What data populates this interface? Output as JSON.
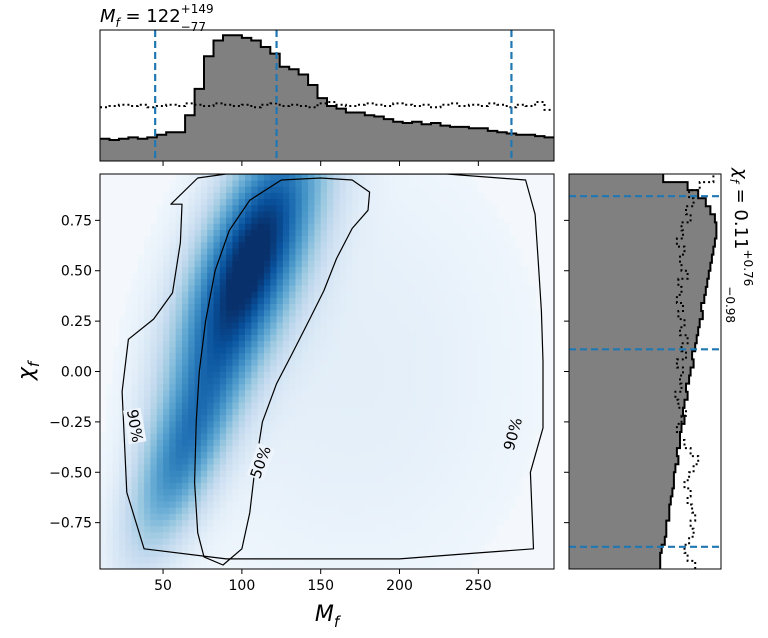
{
  "chart_data": [
    {
      "panel": "joint",
      "type": "heatmap",
      "xlabel": "M_f",
      "ylabel": "χ_f",
      "xlim": [
        10,
        298
      ],
      "ylim": [
        -0.98,
        0.98
      ],
      "xticks": [
        50,
        100,
        150,
        200,
        250
      ],
      "xtick_labels": [
        "50",
        "100",
        "150",
        "200",
        "250"
      ],
      "yticks": [
        -0.75,
        -0.5,
        -0.25,
        0.0,
        0.25,
        0.5,
        0.75
      ],
      "ytick_labels": [
        "−0.75",
        "−0.50",
        "−0.25",
        "0.00",
        "0.25",
        "0.50",
        "0.75"
      ],
      "colormap": "Blues",
      "density_peak": {
        "x": 108,
        "y": 0.62
      },
      "contours": [
        {
          "label": "50%",
          "label_positions": [
            {
              "x": 112,
              "y": -0.45
            }
          ],
          "points": [
            [
              76,
              -0.92
            ],
            [
              72,
              -0.8
            ],
            [
              70,
              -0.55
            ],
            [
              71,
              -0.25
            ],
            [
              73,
              0.0
            ],
            [
              77,
              0.25
            ],
            [
              83,
              0.5
            ],
            [
              92,
              0.7
            ],
            [
              105,
              0.85
            ],
            [
              125,
              0.95
            ],
            [
              150,
              0.96
            ],
            [
              170,
              0.95
            ],
            [
              181,
              0.89
            ],
            [
              180,
              0.8
            ],
            [
              170,
              0.71
            ],
            [
              160,
              0.56
            ],
            [
              152,
              0.4
            ],
            [
              143,
              0.26
            ],
            [
              132,
              0.09
            ],
            [
              122,
              -0.06
            ],
            [
              113,
              -0.25
            ],
            [
              108,
              -0.5
            ],
            [
              105,
              -0.7
            ],
            [
              100,
              -0.88
            ],
            [
              88,
              -0.96
            ],
            [
              76,
              -0.92
            ]
          ]
        },
        {
          "label": "90%",
          "label_positions": [
            {
              "x": 32,
              "y": -0.27
            },
            {
              "x": 272,
              "y": -0.31
            }
          ],
          "points": [
            [
              55,
              0.83
            ],
            [
              62,
              0.83
            ],
            [
              61,
              0.64
            ],
            [
              56,
              0.39
            ],
            [
              44,
              0.26
            ],
            [
              28,
              0.16
            ],
            [
              24,
              -0.1
            ],
            [
              27,
              -0.6
            ],
            [
              38,
              -0.88
            ],
            [
              90,
              -0.93
            ],
            [
              150,
              -0.93
            ],
            [
              200,
              -0.93
            ],
            [
              250,
              -0.9
            ],
            [
              285,
              -0.88
            ],
            [
              283,
              -0.5
            ],
            [
              291,
              -0.28
            ],
            [
              291,
              0.05
            ],
            [
              290,
              0.3
            ],
            [
              288,
              0.55
            ],
            [
              286,
              0.78
            ],
            [
              280,
              0.95
            ],
            [
              230,
              0.98
            ],
            [
              180,
              0.98
            ],
            [
              130,
              0.98
            ],
            [
              90,
              0.98
            ],
            [
              72,
              0.96
            ],
            [
              55,
              0.83
            ]
          ]
        }
      ]
    },
    {
      "panel": "marginal-x",
      "type": "histogram",
      "title_parts": {
        "symbol": "M",
        "sub": "f",
        "eq": " = 122",
        "sup": "+149",
        "low": "−77"
      },
      "xlim": [
        10,
        298
      ],
      "quantile_lines": [
        45,
        122,
        271
      ],
      "bin_width": 6,
      "posterior": [
        [
          10,
          0.17
        ],
        [
          16,
          0.16
        ],
        [
          22,
          0.17
        ],
        [
          28,
          0.18
        ],
        [
          34,
          0.17
        ],
        [
          40,
          0.18
        ],
        [
          46,
          0.2
        ],
        [
          52,
          0.22
        ],
        [
          58,
          0.22
        ],
        [
          64,
          0.35
        ],
        [
          70,
          0.55
        ],
        [
          76,
          0.8
        ],
        [
          82,
          0.92
        ],
        [
          88,
          0.96
        ],
        [
          94,
          0.96
        ],
        [
          100,
          0.94
        ],
        [
          106,
          0.92
        ],
        [
          112,
          0.87
        ],
        [
          118,
          0.82
        ],
        [
          124,
          0.72
        ],
        [
          130,
          0.7
        ],
        [
          136,
          0.66
        ],
        [
          142,
          0.58
        ],
        [
          148,
          0.48
        ],
        [
          154,
          0.42
        ],
        [
          160,
          0.4
        ],
        [
          166,
          0.37
        ],
        [
          172,
          0.37
        ],
        [
          178,
          0.35
        ],
        [
          184,
          0.34
        ],
        [
          190,
          0.32
        ],
        [
          196,
          0.3
        ],
        [
          202,
          0.29
        ],
        [
          208,
          0.3
        ],
        [
          214,
          0.28
        ],
        [
          220,
          0.29
        ],
        [
          226,
          0.27
        ],
        [
          232,
          0.26
        ],
        [
          238,
          0.26
        ],
        [
          244,
          0.25
        ],
        [
          250,
          0.25
        ],
        [
          256,
          0.23
        ],
        [
          262,
          0.22
        ],
        [
          268,
          0.21
        ],
        [
          274,
          0.2
        ],
        [
          280,
          0.2
        ],
        [
          286,
          0.19
        ],
        [
          292,
          0.18
        ]
      ],
      "prior": [
        [
          10,
          0.41
        ],
        [
          16,
          0.42
        ],
        [
          22,
          0.43
        ],
        [
          28,
          0.42
        ],
        [
          34,
          0.43
        ],
        [
          40,
          0.41
        ],
        [
          46,
          0.42
        ],
        [
          52,
          0.43
        ],
        [
          58,
          0.42
        ],
        [
          64,
          0.44
        ],
        [
          70,
          0.43
        ],
        [
          76,
          0.42
        ],
        [
          82,
          0.44
        ],
        [
          88,
          0.43
        ],
        [
          94,
          0.42
        ],
        [
          100,
          0.43
        ],
        [
          106,
          0.41
        ],
        [
          112,
          0.43
        ],
        [
          118,
          0.44
        ],
        [
          124,
          0.42
        ],
        [
          130,
          0.43
        ],
        [
          136,
          0.42
        ],
        [
          142,
          0.41
        ],
        [
          148,
          0.44
        ],
        [
          154,
          0.45
        ],
        [
          160,
          0.43
        ],
        [
          166,
          0.42
        ],
        [
          172,
          0.43
        ],
        [
          178,
          0.44
        ],
        [
          184,
          0.43
        ],
        [
          190,
          0.42
        ],
        [
          196,
          0.44
        ],
        [
          202,
          0.43
        ],
        [
          208,
          0.42
        ],
        [
          214,
          0.43
        ],
        [
          220,
          0.41
        ],
        [
          226,
          0.43
        ],
        [
          232,
          0.44
        ],
        [
          238,
          0.42
        ],
        [
          244,
          0.43
        ],
        [
          250,
          0.42
        ],
        [
          256,
          0.44
        ],
        [
          262,
          0.43
        ],
        [
          268,
          0.41
        ],
        [
          274,
          0.43
        ],
        [
          280,
          0.42
        ],
        [
          286,
          0.45
        ],
        [
          292,
          0.39
        ]
      ]
    },
    {
      "panel": "marginal-y",
      "type": "histogram",
      "orientation": "horizontal",
      "title_parts": {
        "symbol": "χ",
        "sub": "f",
        "eq": " = 0.11",
        "sup": "+0.76",
        "low": "−0.98"
      },
      "ylim": [
        -0.98,
        0.98
      ],
      "quantile_lines": [
        -0.87,
        0.11,
        0.87
      ],
      "bin_width": 0.04,
      "posterior": [
        [
          -0.98,
          0.6
        ],
        [
          -0.94,
          0.6
        ],
        [
          -0.9,
          0.61
        ],
        [
          -0.86,
          0.63
        ],
        [
          -0.82,
          0.64
        ],
        [
          -0.78,
          0.64
        ],
        [
          -0.74,
          0.66
        ],
        [
          -0.7,
          0.66
        ],
        [
          -0.66,
          0.67
        ],
        [
          -0.62,
          0.68
        ],
        [
          -0.58,
          0.69
        ],
        [
          -0.54,
          0.69
        ],
        [
          -0.5,
          0.7
        ],
        [
          -0.46,
          0.72
        ],
        [
          -0.42,
          0.71
        ],
        [
          -0.38,
          0.73
        ],
        [
          -0.34,
          0.73
        ],
        [
          -0.3,
          0.74
        ],
        [
          -0.26,
          0.76
        ],
        [
          -0.22,
          0.75
        ],
        [
          -0.18,
          0.76
        ],
        [
          -0.14,
          0.78
        ],
        [
          -0.1,
          0.77
        ],
        [
          -0.06,
          0.79
        ],
        [
          -0.02,
          0.8
        ],
        [
          0.02,
          0.82
        ],
        [
          0.06,
          0.81
        ],
        [
          0.1,
          0.83
        ],
        [
          0.14,
          0.84
        ],
        [
          0.18,
          0.85
        ],
        [
          0.22,
          0.86
        ],
        [
          0.26,
          0.88
        ],
        [
          0.3,
          0.87
        ],
        [
          0.34,
          0.89
        ],
        [
          0.38,
          0.9
        ],
        [
          0.42,
          0.91
        ],
        [
          0.46,
          0.92
        ],
        [
          0.5,
          0.93
        ],
        [
          0.54,
          0.94
        ],
        [
          0.58,
          0.95
        ],
        [
          0.62,
          0.96
        ],
        [
          0.66,
          0.97
        ],
        [
          0.7,
          0.97
        ],
        [
          0.74,
          0.96
        ],
        [
          0.78,
          0.93
        ],
        [
          0.82,
          0.9
        ],
        [
          0.86,
          0.85
        ],
        [
          0.9,
          0.78
        ],
        [
          0.94,
          0.62
        ]
      ],
      "prior": [
        [
          -0.98,
          0.83
        ],
        [
          -0.94,
          0.78
        ],
        [
          -0.9,
          0.76
        ],
        [
          -0.86,
          0.79
        ],
        [
          -0.82,
          0.82
        ],
        [
          -0.78,
          0.8
        ],
        [
          -0.74,
          0.83
        ],
        [
          -0.7,
          0.81
        ],
        [
          -0.66,
          0.78
        ],
        [
          -0.62,
          0.8
        ],
        [
          -0.58,
          0.76
        ],
        [
          -0.54,
          0.79
        ],
        [
          -0.5,
          0.82
        ],
        [
          -0.46,
          0.85
        ],
        [
          -0.42,
          0.8
        ],
        [
          -0.38,
          0.76
        ],
        [
          -0.34,
          0.73
        ],
        [
          -0.3,
          0.71
        ],
        [
          -0.26,
          0.74
        ],
        [
          -0.22,
          0.77
        ],
        [
          -0.18,
          0.72
        ],
        [
          -0.14,
          0.7
        ],
        [
          -0.1,
          0.74
        ],
        [
          -0.06,
          0.73
        ],
        [
          -0.02,
          0.75
        ],
        [
          0.02,
          0.71
        ],
        [
          0.06,
          0.77
        ],
        [
          0.1,
          0.74
        ],
        [
          0.14,
          0.78
        ],
        [
          0.18,
          0.73
        ],
        [
          0.22,
          0.76
        ],
        [
          0.26,
          0.72
        ],
        [
          0.3,
          0.75
        ],
        [
          0.34,
          0.71
        ],
        [
          0.38,
          0.74
        ],
        [
          0.42,
          0.72
        ],
        [
          0.46,
          0.78
        ],
        [
          0.5,
          0.74
        ],
        [
          0.54,
          0.73
        ],
        [
          0.58,
          0.76
        ],
        [
          0.62,
          0.71
        ],
        [
          0.66,
          0.75
        ],
        [
          0.7,
          0.74
        ],
        [
          0.74,
          0.8
        ],
        [
          0.78,
          0.77
        ],
        [
          0.82,
          0.82
        ],
        [
          0.86,
          0.79
        ],
        [
          0.9,
          0.86
        ],
        [
          0.94,
          0.95
        ]
      ]
    }
  ]
}
